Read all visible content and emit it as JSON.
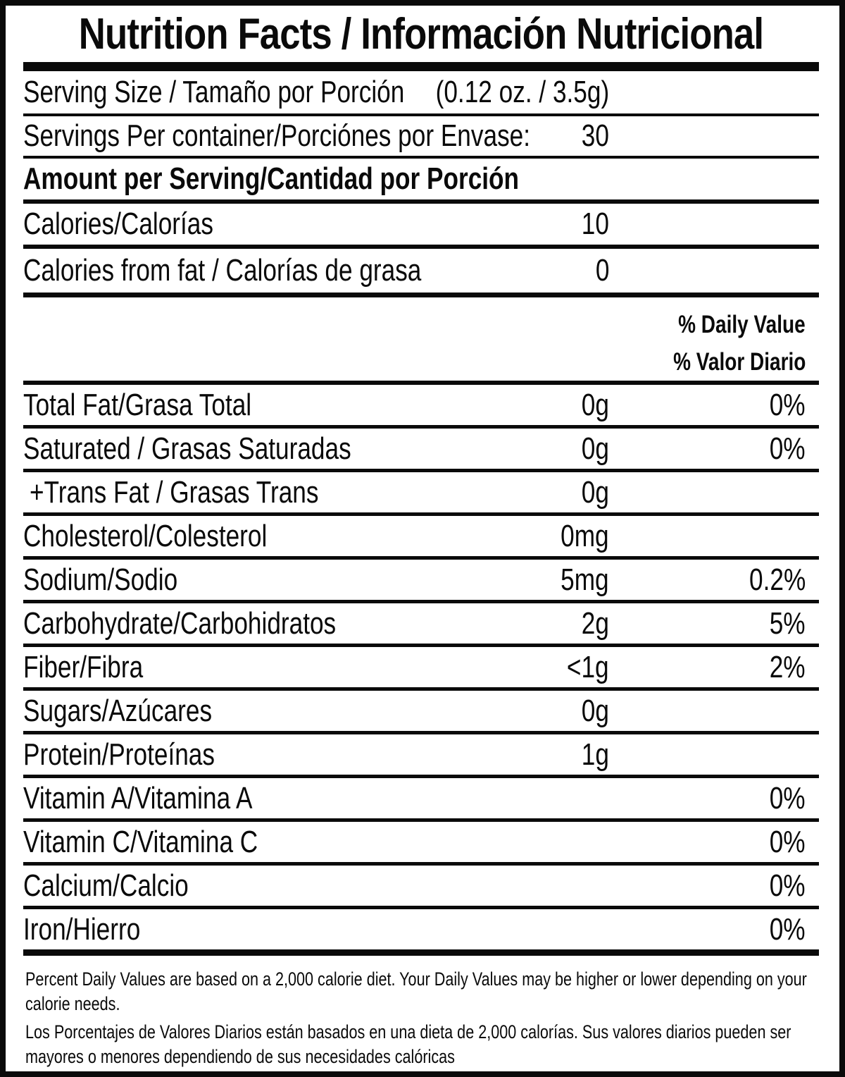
{
  "title": "Nutrition Facts / Información Nutricional",
  "serving": {
    "size_label": "Serving Size / Tamaño por Porción",
    "size_value": "(0.12 oz. / 3.5g)",
    "per_container_label": "Servings Per container/Porciónes por Envase:",
    "per_container_value": "30",
    "amount_heading": "Amount per Serving/Cantidad por Porción"
  },
  "calories": [
    {
      "label": "Calories/Calorías",
      "value": "10"
    },
    {
      "label": "Calories from fat / Calorías de grasa",
      "value": "0"
    }
  ],
  "daily_value_header": {
    "en": "% Daily Value",
    "es": "% Valor Diario"
  },
  "nutrients": [
    {
      "label": "Total Fat/Grasa Total",
      "amount": "0g",
      "dv": "0%"
    },
    {
      "label": "Saturated / Grasas Saturadas",
      "amount": "0g",
      "dv": "0%"
    },
    {
      "label": "+Trans Fat / Grasas Trans",
      "amount": "0g",
      "dv": ""
    },
    {
      "label": "Cholesterol/Colesterol",
      "amount": "0mg",
      "dv": ""
    },
    {
      "label": "Sodium/Sodio",
      "amount": "5mg",
      "dv": "0.2%"
    },
    {
      "label": "Carbohydrate/Carbohidratos",
      "amount": "2g",
      "dv": "5%"
    },
    {
      "label": "Fiber/Fibra",
      "amount": "<1g",
      "dv": "2%"
    },
    {
      "label": "Sugars/Azúcares",
      "amount": "0g",
      "dv": ""
    },
    {
      "label": "Protein/Proteínas",
      "amount": "1g",
      "dv": ""
    },
    {
      "label": "Vitamin A/Vitamina A",
      "amount": "",
      "dv": "0%"
    },
    {
      "label": "Vitamin C/Vitamina C",
      "amount": "",
      "dv": "0%"
    },
    {
      "label": "Calcium/Calcio",
      "amount": "",
      "dv": "0%"
    },
    {
      "label": "Iron/Hierro",
      "amount": "",
      "dv": "0%"
    }
  ],
  "footnotes": {
    "en": "Percent Daily Values are based on a 2,000 calorie diet. Your Daily Values may be higher or lower depending on your calorie needs.",
    "es": "Los Porcentajes de Valores Diarios están basados en una dieta de 2,000 calorías. Sus valores diarios pueden ser mayores o menores dependiendo de sus necesidades calóricas"
  },
  "colors": {
    "ink": "#0a0a0a",
    "paper": "#ffffff"
  }
}
